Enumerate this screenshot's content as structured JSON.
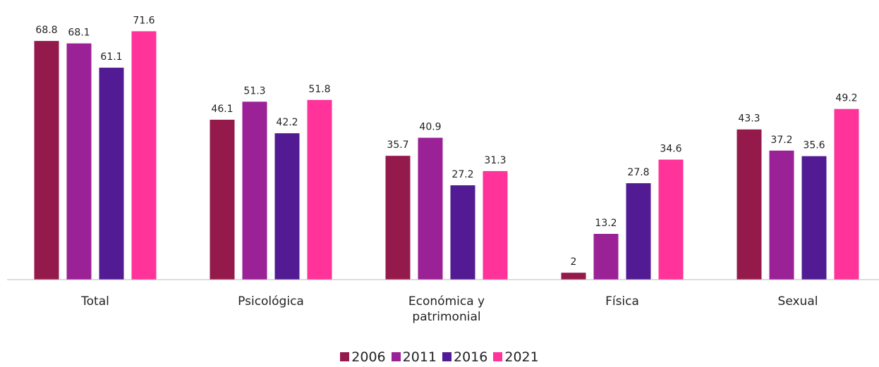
{
  "chart_data": {
    "type": "bar",
    "categories": [
      "Total",
      "Psicológica",
      "Económica y patrimonial",
      "Física",
      "Sexual"
    ],
    "series": [
      {
        "name": "2006",
        "color": "#951a4c",
        "values": [
          68.8,
          46.1,
          35.7,
          2,
          43.3
        ]
      },
      {
        "name": "2011",
        "color": "#9b2196",
        "values": [
          68.1,
          51.3,
          40.9,
          13.2,
          37.2
        ]
      },
      {
        "name": "2016",
        "color": "#521b93",
        "values": [
          61.1,
          42.2,
          27.2,
          27.8,
          35.6
        ]
      },
      {
        "name": "2021",
        "color": "#ff3399",
        "values": [
          71.6,
          51.8,
          31.3,
          34.6,
          49.2
        ]
      }
    ],
    "ylim": [
      0,
      80
    ],
    "legend": "bottom"
  }
}
